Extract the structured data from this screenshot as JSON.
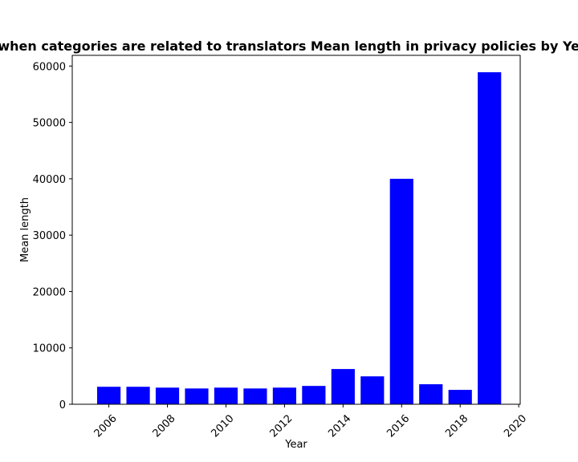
{
  "chart_data": {
    "type": "bar",
    "title": "when categories are related to translators Mean length in privacy policies by Year",
    "xlabel": "Year",
    "ylabel": "Mean length",
    "x": [
      2006,
      2007,
      2008,
      2009,
      2010,
      2011,
      2012,
      2013,
      2014,
      2015,
      2016,
      2017,
      2018,
      2019
    ],
    "values": [
      3100,
      3100,
      2950,
      2800,
      2950,
      2800,
      2950,
      3250,
      6250,
      4950,
      40000,
      3550,
      2550,
      58900
    ],
    "xlim": [
      2004.75,
      2020.05
    ],
    "ylim": [
      0,
      61900
    ],
    "x_ticks": [
      2006,
      2008,
      2010,
      2012,
      2014,
      2016,
      2018,
      2020
    ],
    "y_ticks": [
      0,
      10000,
      20000,
      30000,
      40000,
      50000,
      60000
    ],
    "bar_color": "#0000ff",
    "grid": false
  }
}
